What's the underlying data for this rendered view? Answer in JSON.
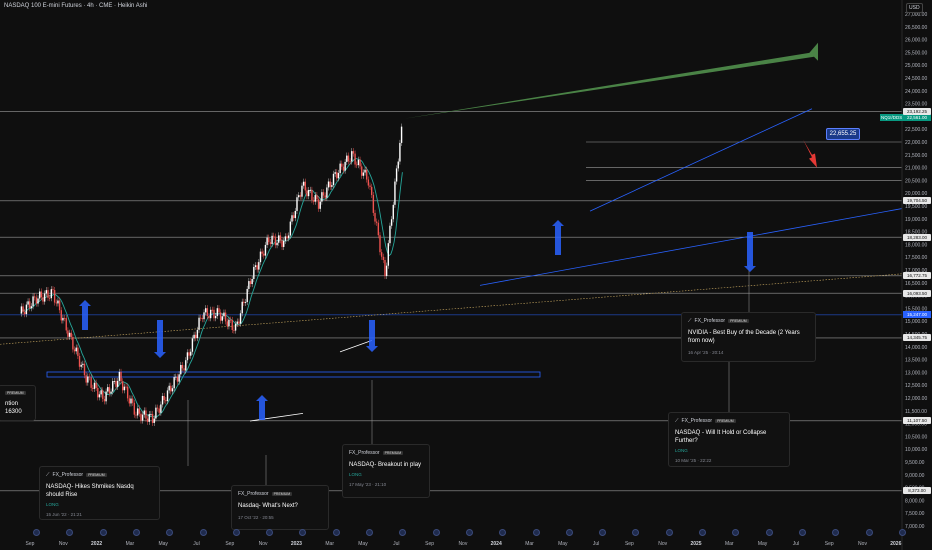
{
  "header": {
    "title": "NASDAQ 100 E-mini Futures · 4h · CME · Heikin Ashi",
    "currency": "USD"
  },
  "price_scale": {
    "ticks": [
      "27,000.00",
      "26,500.00",
      "26,000.00",
      "25,500.00",
      "25,000.00",
      "24,500.00",
      "24,000.00",
      "23,500.00",
      "22,500.00",
      "22,000.00",
      "21,500.00",
      "21,000.00",
      "20,500.00",
      "20,000.00",
      "19,500.00",
      "19,000.00",
      "18,500.00",
      "18,000.00",
      "17,500.00",
      "17,000.00",
      "16,500.00",
      "16,000.00",
      "15,500.00",
      "15,000.00",
      "14,500.00",
      "14,000.00",
      "13,500.00",
      "13,000.00",
      "12,500.00",
      "12,000.00",
      "11,500.00",
      "11,000.00",
      "10,500.00",
      "10,000.00",
      "9,500.00",
      "9,000.00",
      "8,500.00",
      "8,000.00",
      "7,500.00",
      "7,000.00"
    ],
    "tick_values": [
      27000,
      26500,
      26000,
      25500,
      25000,
      24500,
      24000,
      23500,
      22500,
      22000,
      21500,
      21000,
      20500,
      20000,
      19500,
      19000,
      18500,
      18000,
      17500,
      17000,
      16500,
      16000,
      15500,
      15000,
      14500,
      14000,
      13500,
      13000,
      12500,
      12000,
      11500,
      11000,
      10500,
      10000,
      9500,
      9000,
      8500,
      8000,
      7500,
      7000
    ],
    "symbol_tag": "NQ1!/DDS",
    "last_price": "22,561.00",
    "flag_labels": [
      "23,192.25",
      "19,704.50",
      "18,283.00",
      "16,772.75",
      "16,093.50",
      "14,345.75",
      "11,107.50",
      "8,373.00"
    ],
    "flag_values": [
      23192.25,
      19704.5,
      18283,
      16772.75,
      16093.5,
      14345.75,
      11107.5,
      8373
    ],
    "blue_tag": "15,247.00",
    "blue_tag_value": 15247,
    "extra_small": [
      "16,500",
      "20,500",
      "18,283",
      "15,000"
    ]
  },
  "time_scale": {
    "labels": [
      "Sep",
      "Nov",
      "2022",
      "Mar",
      "May",
      "Jul",
      "Sep",
      "Nov",
      "2023",
      "Mar",
      "May",
      "Jul",
      "Sep",
      "Nov",
      "2024",
      "Mar",
      "May",
      "Jul",
      "Sep",
      "Nov",
      "2025",
      "Mar",
      "May",
      "Jul",
      "Sep",
      "Nov",
      "2026"
    ],
    "bold": [
      "2022",
      "2023",
      "2024",
      "2025",
      "2026"
    ]
  },
  "price_box": "22,655.25",
  "ideas": [
    {
      "author": "FX_Professor",
      "badge": "PREMIUM",
      "title": "NASDAQ- Hikes Shmikes Nasdq should Rise",
      "side": "LONG",
      "date": "15 Jun '22 · 21:21"
    },
    {
      "author": "FX_Professor",
      "badge": "PREMIUM",
      "title": "Nasdaq- What's Next?",
      "side": "",
      "date": "17 Oct '22 · 20:55"
    },
    {
      "author": "FX_Professor",
      "badge": "PREMIUM",
      "title": "NASDAQ- Breakout in play",
      "side": "LONG",
      "date": "17 May '23 · 21:10"
    },
    {
      "author": "FX_Professor",
      "badge": "PREMIUM",
      "title": "NVIDIA - Best Buy of the Decade (2 Years from now)",
      "side": "",
      "date": "16 Apr '25 · 20:14"
    },
    {
      "author": "FX_Professor",
      "badge": "PREMIUM",
      "title": "NASDAQ - Will It Hold or Collapse Further?",
      "side": "LONG",
      "date": "10 Mar '25 · 22:22"
    },
    {
      "author": "",
      "badge": "PREMIUM",
      "title": "ntion 16300",
      "side": "",
      "date": ""
    }
  ],
  "chart_data": {
    "type": "line",
    "symbol": "NASDAQ 100 E-mini Futures",
    "interval": "4h",
    "style": "Heikin Ashi",
    "x": [
      "2021-09",
      "2021-11",
      "2022-01",
      "2022-03",
      "2022-05",
      "2022-07",
      "2022-09",
      "2022-11",
      "2023-01",
      "2023-03",
      "2023-05",
      "2023-07",
      "2023-09",
      "2023-11",
      "2024-01",
      "2024-03",
      "2024-05",
      "2024-07",
      "2024-09",
      "2024-11",
      "2025-01",
      "2025-03",
      "2025-05",
      "2025-07"
    ],
    "series": [
      {
        "values": [
          15300,
          15900,
          16100,
          14400,
          12800,
          12000,
          12800,
          11400,
          11200,
          12300,
          13400,
          15300,
          15300,
          14700,
          16800,
          18200,
          18100,
          20300,
          19600,
          20700,
          21500,
          20500,
          16800,
          22600
        ]
      }
    ],
    "ylim": [
      6800,
      27500
    ],
    "horizontal_levels": [
      23192.25,
      22000,
      21000,
      20500,
      19704.5,
      18283,
      16772.75,
      16093.5,
      15247,
      14345.75,
      13000,
      11107.5,
      8373
    ],
    "targets": {
      "up": 25800,
      "down": 21000
    }
  }
}
